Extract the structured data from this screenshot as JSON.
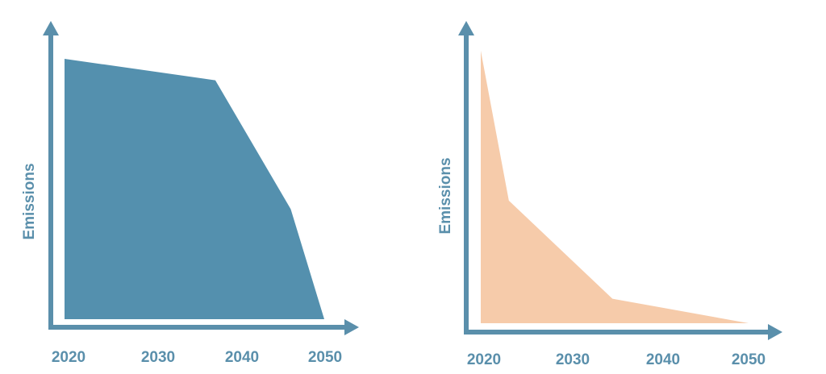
{
  "chart_data": [
    {
      "type": "area",
      "ylabel": "Emissions",
      "x_ticks": [
        "2020",
        "2030",
        "2040",
        "2050"
      ],
      "xlim": [
        2019,
        2050
      ],
      "ylim": [
        0,
        1
      ],
      "grid": false,
      "axis_color": "#5a8fab",
      "fill_color": "#5490ae",
      "x": [
        2019,
        2037,
        2046,
        2050
      ],
      "y": [
        0.97,
        0.89,
        0.41,
        0.0
      ]
    },
    {
      "type": "area",
      "ylabel": "Emissions",
      "x_ticks": [
        "2020",
        "2030",
        "2040",
        "2050"
      ],
      "xlim": [
        2019.5,
        2050
      ],
      "ylim": [
        0,
        1
      ],
      "grid": false,
      "axis_color": "#5a8fab",
      "fill_color": "#f6cbaa",
      "x": [
        2019.5,
        2022.7,
        2034.5,
        2050
      ],
      "y": [
        1.0,
        0.45,
        0.09,
        0.0
      ]
    }
  ]
}
